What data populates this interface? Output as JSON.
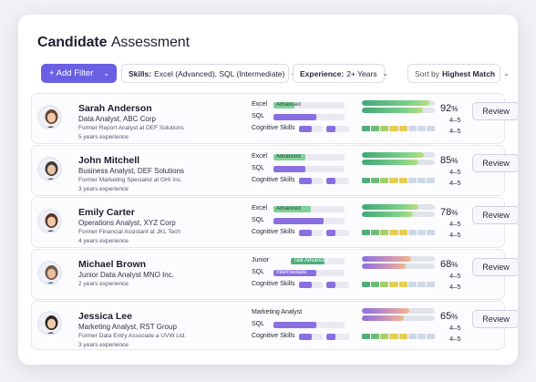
{
  "title_bold": "Candidate",
  "title_light": "Assessment",
  "toolbar": {
    "add_filter": "+ Add Filter",
    "skills_label": "Skills:",
    "skills_value": "Excel (Advanced), SQL (Intermediate)",
    "experience_label": "Experience:",
    "experience_value": "2+ Years",
    "sort_prefix": "Sort by",
    "sort_value": "Highest Match"
  },
  "review_label": "Review",
  "candidates": [
    {
      "name": "Sarah Anderson",
      "role": "Data Analyst, ABC Corp",
      "previous": "Former Report Analyst at DEF Solutions",
      "experience": "5 years experience",
      "skill1": "Excel",
      "skill1_badge": "Advanced",
      "skill1_level": 0.3,
      "skill2": "SQL",
      "skill2_level": 0.6,
      "skill3": "Cognitive Skills",
      "skill3_level": 0.55,
      "match": "92",
      "cognitive_range": "4–5"
    },
    {
      "name": "John Mitchell",
      "role": "Business Analyst, DEF Solutions",
      "previous": "Former Marketing Specialist at GHI Inc.",
      "experience": "3 years experience",
      "skill1": "Excel",
      "skill1_badge": "Advanced",
      "skill1_level": 0.45,
      "skill2": "SQL",
      "skill2_level": 0.45,
      "skill3": "Cognitive Skills",
      "skill3_level": 0.52,
      "match": "85",
      "cognitive_range": "4–5"
    },
    {
      "name": "Emily Carter",
      "role": "Operations Analyst, XYZ Corp",
      "previous": "Former Financial Assistant at JKL Tech",
      "experience": "4 years experience",
      "skill1": "Excel",
      "skill1_badge": "Advanced",
      "skill1_level": 0.52,
      "skill2": "SQL",
      "skill2_level": 0.7,
      "skill3": "Cognitive Skills",
      "skill3_level": 0.55,
      "match": "78",
      "cognitive_range": "4–5"
    },
    {
      "name": "Michael Brown",
      "role": "Junior Data Analyst MNO Inc.",
      "previous": "",
      "experience": "2 years experience",
      "skill1": "Junior",
      "skill1_badge": "Talk Advanced",
      "skill1_level": 0.63,
      "skill2": "SQL",
      "skill2_badge": "Intermediate",
      "skill2_level": 0.6,
      "skill3": "Cognitive Skills",
      "skill3_level": 0.55,
      "match": "68",
      "cognitive_range": "4–5"
    },
    {
      "name": "Jessica Lee",
      "role": "Marketing Analyst, RST Group",
      "previous": "Former Data Entry Associate a UVW Ltd.",
      "experience": "3 years experience",
      "skill1": "Marketing Analyst",
      "skill1_level": 0,
      "skill2": "SQL",
      "skill2_level": 0.6,
      "skill3": "Cognitive Skills",
      "skill3_level": 0.55,
      "match": "65",
      "cognitive_range": "4–5"
    }
  ],
  "colors": {
    "accent": "#6b5fe3",
    "green": "#4ab07a",
    "purple": "#8a6fe0"
  }
}
